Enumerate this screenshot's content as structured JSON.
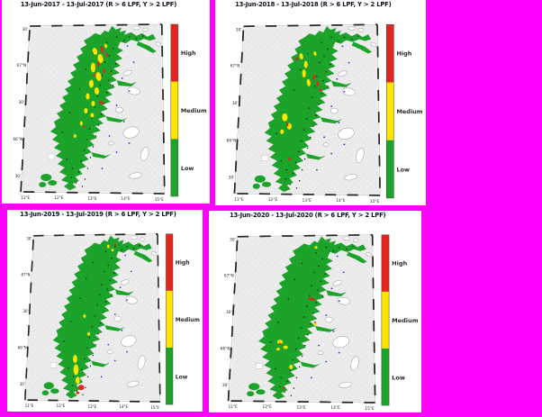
{
  "app": {
    "background_color": "#FF00FF",
    "panel_background": "#FFFFFF",
    "description": "Four-panel salmon-lice risk map figure, Nordland coast, one panel per year"
  },
  "colors": {
    "high": "#E3261D",
    "medium": "#FFE400",
    "low": "#1CA42A",
    "sea": "#EAEAEA",
    "frame_line": "#8a8a8a",
    "blue_dot": "#2236C8",
    "speck": "#111111"
  },
  "legend": {
    "high": "High",
    "medium": "Medium",
    "low": "Low"
  },
  "map": {
    "xticks": [
      "11°E",
      "12°E",
      "13°E",
      "14°E",
      "15°E"
    ],
    "yticks": [
      "30'",
      "67°N",
      "30'",
      "66°N",
      "30'"
    ]
  },
  "panels": [
    {
      "year": "2017",
      "title": "13-Jun-2017  - 13-Jul-2017  (R > 6 LPF, Y > 2 LPF)",
      "patches": {
        "medium": [
          [
            72,
            28,
            5,
            8,
            -15
          ],
          [
            78,
            36,
            6,
            10,
            -10
          ],
          [
            70,
            46,
            5,
            11,
            0
          ],
          [
            76,
            56,
            6,
            10,
            -12
          ],
          [
            68,
            64,
            5,
            9,
            0
          ],
          [
            74,
            72,
            5,
            8,
            -8
          ],
          [
            64,
            78,
            4,
            7,
            0
          ],
          [
            70,
            86,
            4,
            6,
            0
          ],
          [
            62,
            94,
            4,
            6,
            0
          ],
          [
            69,
            99,
            4,
            5,
            0
          ],
          [
            57,
            108,
            3,
            5,
            0
          ],
          [
            50,
            122,
            3,
            4,
            0
          ],
          [
            84,
            22,
            3,
            5,
            -20
          ]
        ],
        "high": [
          [
            80,
            26,
            3,
            8,
            -12
          ],
          [
            85,
            32,
            2.5,
            6,
            0
          ],
          [
            76,
            42,
            2.5,
            6,
            0
          ],
          [
            82,
            50,
            2.5,
            5,
            0
          ],
          [
            72,
            54,
            2,
            4,
            0
          ],
          [
            79,
            85,
            6,
            3,
            10
          ],
          [
            60,
            112,
            2,
            3,
            0
          ]
        ]
      }
    },
    {
      "year": "2018",
      "title": "13-Jun-2018  - 13-Jul-2018  (R > 6 LPF, Y > 2 LPF)",
      "patches": {
        "medium": [
          [
            63,
            33,
            4,
            7,
            -10
          ],
          [
            68,
            42,
            4,
            8,
            0
          ],
          [
            66,
            52,
            4,
            9,
            0
          ],
          [
            71,
            62,
            4,
            8,
            -8
          ],
          [
            45,
            100,
            6,
            9,
            0
          ],
          [
            50,
            110,
            5,
            7,
            0
          ],
          [
            42,
            116,
            4,
            5,
            0
          ],
          [
            78,
            30,
            3,
            5,
            -15
          ]
        ],
        "high": [
          [
            77,
            56,
            2.5,
            7,
            0
          ],
          [
            81,
            63,
            2.5,
            6,
            0
          ],
          [
            84,
            70,
            4,
            2.5,
            20
          ],
          [
            48,
            108,
            2,
            4,
            0
          ],
          [
            58,
            36,
            2,
            4,
            0
          ],
          [
            50,
            146,
            3,
            3,
            0
          ]
        ]
      }
    },
    {
      "year": "2019",
      "title": "13-Jun-2019  - 13-Jul-2019  (R > 6 LPF, Y > 2 LPF)",
      "patches": {
        "medium": [
          [
            88,
            12,
            3,
            4,
            0
          ],
          [
            93,
            16,
            3,
            3,
            0
          ],
          [
            60,
            90,
            3,
            4,
            0
          ],
          [
            65,
            110,
            3,
            4,
            0
          ],
          [
            49,
            138,
            5,
            9,
            0
          ],
          [
            50,
            150,
            6,
            12,
            0
          ],
          [
            52,
            162,
            5,
            8,
            0
          ]
        ],
        "high": [
          [
            96,
            10,
            2,
            3,
            0
          ],
          [
            56,
            170,
            7,
            6,
            0
          ],
          [
            52,
            176,
            4,
            3,
            0
          ]
        ]
      }
    },
    {
      "year": "2020",
      "title": "13-Jun-2020  - 13-Jul-2020  (R > 6 LPF, Y > 2 LPF)",
      "patches": {
        "medium": [
          [
            85,
            12,
            3,
            3,
            0
          ],
          [
            84,
            98,
            4,
            3,
            0
          ],
          [
            46,
            118,
            6,
            5,
            0
          ],
          [
            52,
            124,
            5,
            4,
            0
          ],
          [
            44,
            126,
            4,
            3,
            0
          ],
          [
            58,
            146,
            4,
            5,
            0
          ]
        ],
        "high": [
          [
            80,
            70,
            8,
            3,
            15
          ],
          [
            46,
            120,
            3,
            2,
            0
          ],
          [
            84,
            96,
            2,
            2,
            0
          ],
          [
            50,
            170,
            2,
            3,
            0
          ]
        ]
      }
    }
  ]
}
